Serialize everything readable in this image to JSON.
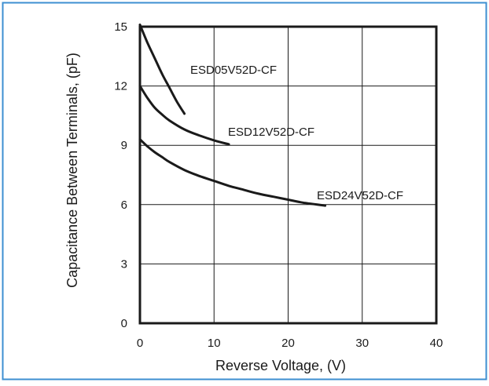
{
  "colors": {
    "frame": "#3d8fd1",
    "axis": "#1a1a1a",
    "grid": "#1a1a1a",
    "curve": "#1a1a1a"
  },
  "chart_data": {
    "type": "line",
    "title": "",
    "xlabel": "Reverse Voltage, (V)",
    "ylabel": "Capacitance Between Terminals, (pF)",
    "xlim": [
      0,
      40
    ],
    "ylim": [
      0,
      15
    ],
    "xticks": [
      0,
      10,
      20,
      30,
      40
    ],
    "yticks": [
      0,
      3,
      6,
      9,
      12,
      15
    ],
    "grid": true,
    "legend": "none",
    "series": [
      {
        "name": "ESD05V52D-CF",
        "x": [
          0,
          1,
          2,
          3,
          4,
          5,
          6
        ],
        "y": [
          15.1,
          14.2,
          13.4,
          12.6,
          11.9,
          11.2,
          10.6
        ]
      },
      {
        "name": "ESD12V52D-CF",
        "x": [
          0,
          1,
          2,
          3,
          4,
          6,
          8,
          10,
          12
        ],
        "y": [
          12.0,
          11.4,
          10.9,
          10.55,
          10.25,
          9.8,
          9.5,
          9.25,
          9.05
        ]
      },
      {
        "name": "ESD24V52D-CF",
        "x": [
          0,
          1,
          2,
          3,
          4,
          6,
          8,
          10,
          12,
          14,
          16,
          18,
          20,
          22,
          25
        ],
        "y": [
          9.3,
          8.95,
          8.65,
          8.4,
          8.15,
          7.75,
          7.45,
          7.2,
          6.95,
          6.75,
          6.55,
          6.4,
          6.25,
          6.1,
          5.95
        ]
      }
    ]
  }
}
